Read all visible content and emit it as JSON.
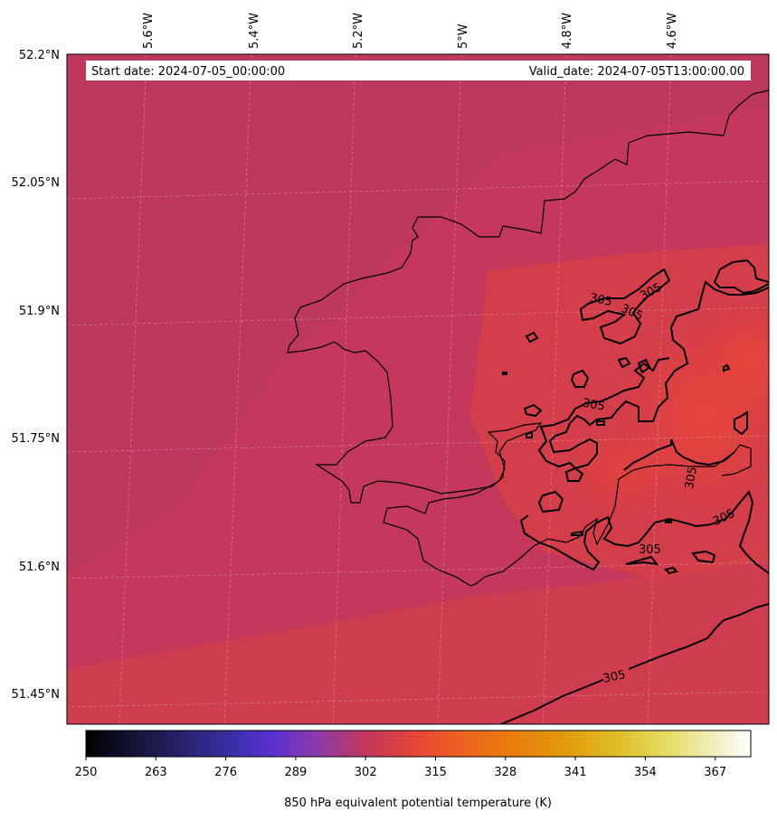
{
  "header": {
    "start_label": "Start date: 2024-07-05_00:00:00",
    "valid_label": "Valid_date: 2024-07-05T13:00:00.00"
  },
  "map": {
    "lon_labels": [
      "5.6°W",
      "5.4°W",
      "5.2°W",
      "5°W",
      "4.8°W",
      "4.6°W"
    ],
    "lat_labels": [
      "52.2°N",
      "52.05°N",
      "51.9°N",
      "51.75°N",
      "51.6°N",
      "51.45°N"
    ],
    "contour_level": "305",
    "colors": {
      "field_base": "#c4385c",
      "field_west": "#b9385f",
      "field_warm": "#e0423f",
      "field_hot": "#e8443a",
      "coastline": "#000000",
      "gridline": "#c8a0b0"
    }
  },
  "colorbar": {
    "label": "850 hPa equivalent potential temperature (K)",
    "ticks": [
      "250",
      "263",
      "276",
      "289",
      "302",
      "315",
      "328",
      "341",
      "354",
      "367"
    ],
    "colormap": "CMRmap"
  }
}
